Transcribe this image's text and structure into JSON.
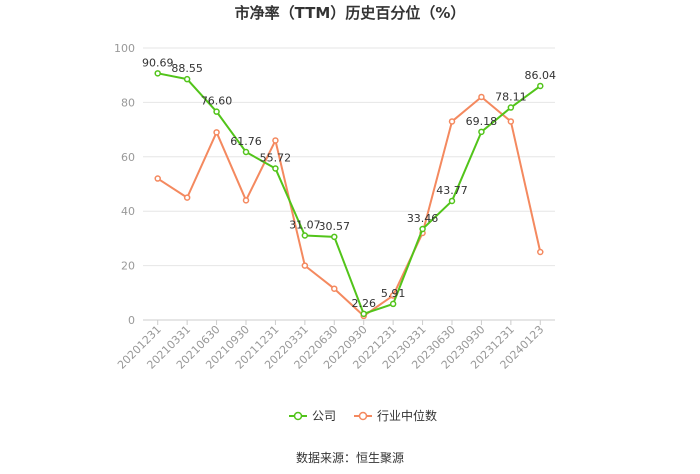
{
  "chart_data": {
    "type": "line",
    "title": "市净率（TTM）历史百分位（%）",
    "xlabel": "",
    "ylabel": "",
    "ylim": [
      0,
      100
    ],
    "yticks": [
      0,
      20,
      40,
      60,
      80,
      100
    ],
    "grid": "horizontal",
    "legend_position": "bottom",
    "categories": [
      "20201231",
      "20210331",
      "20210630",
      "20210930",
      "20211231",
      "20220331",
      "20220630",
      "20220930",
      "20221231",
      "20230331",
      "20230630",
      "20230930",
      "20231231",
      "20240123"
    ],
    "series": [
      {
        "name": "公司",
        "color": "#52c41a",
        "values": [
          90.69,
          88.55,
          76.6,
          61.76,
          55.72,
          31.07,
          30.57,
          2.26,
          5.91,
          33.46,
          43.77,
          69.18,
          78.11,
          86.04
        ],
        "labels": [
          "90.69",
          "88.55",
          "76.60",
          "61.76",
          "55.72",
          "31.07",
          "30.57",
          "2.26",
          "5.91",
          "33.46",
          "43.77",
          "69.18",
          "78.11",
          "86.04"
        ]
      },
      {
        "name": "行业中位数",
        "color": "#f4895f",
        "values": [
          52,
          45,
          69,
          44,
          66,
          20,
          11.5,
          1.5,
          9,
          32,
          73,
          82,
          73,
          25
        ]
      }
    ]
  },
  "source_text": "数据来源：恒生聚源"
}
